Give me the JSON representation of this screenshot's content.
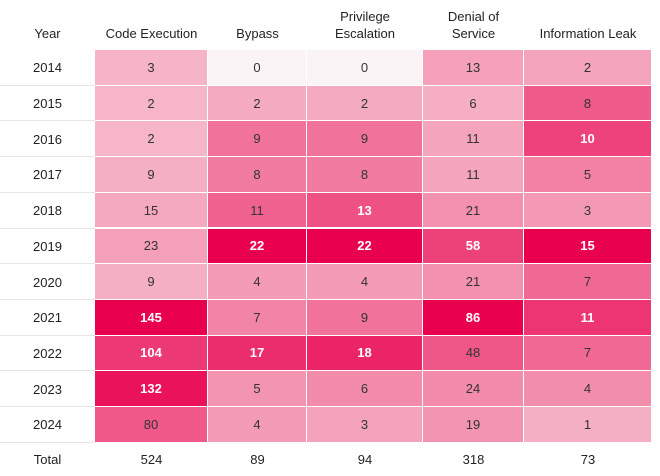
{
  "chart_data": {
    "type": "heatmap",
    "row_header": "Year",
    "columns": [
      "Code Execution",
      "Bypass",
      "Privilege\nEscalation",
      "Denial of\nService",
      "Information Leak"
    ],
    "rows": [
      "2014",
      "2015",
      "2016",
      "2017",
      "2018",
      "2019",
      "2020",
      "2021",
      "2022",
      "2023",
      "2024"
    ],
    "values": [
      [
        3,
        0,
        0,
        13,
        2
      ],
      [
        2,
        2,
        2,
        6,
        8
      ],
      [
        2,
        9,
        9,
        11,
        10
      ],
      [
        9,
        8,
        8,
        11,
        5
      ],
      [
        15,
        11,
        13,
        21,
        3
      ],
      [
        23,
        22,
        22,
        58,
        15
      ],
      [
        9,
        4,
        4,
        21,
        7
      ],
      [
        145,
        7,
        9,
        86,
        11
      ],
      [
        104,
        17,
        18,
        48,
        7
      ],
      [
        132,
        5,
        6,
        24,
        4
      ],
      [
        80,
        4,
        3,
        19,
        1
      ]
    ],
    "total_label": "Total",
    "totals": [
      524,
      89,
      94,
      318,
      73
    ],
    "color_scale": {
      "low": "#f6b8c8",
      "high": "#e8004f",
      "zero": "#fbf4f6"
    }
  }
}
